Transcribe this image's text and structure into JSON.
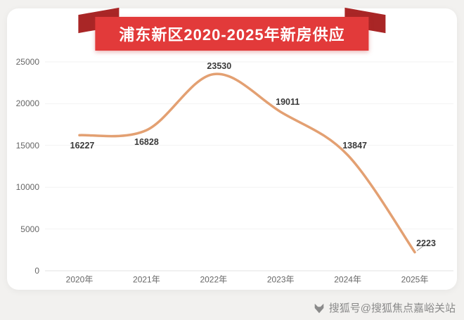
{
  "theme": {
    "page_bg": "#f2f1ef",
    "card_bg": "#ffffff",
    "accent": "#e23a3a",
    "accent_dark": "#a92626",
    "line_color": "#e3a072",
    "grid_color": "#f2f2f2",
    "baseline_color": "#e3e3e3",
    "axis_text": "#666666",
    "label_text": "#3a3a3a",
    "watermark_color": "#8a8a8a"
  },
  "watermark": {
    "icon": "sohu-fox-logo",
    "text": "搜狐号@搜狐焦点嘉峪关站"
  },
  "chart_data": {
    "type": "line",
    "title": "浦东新区2020-2025年新房供应",
    "categories": [
      "2020年",
      "2021年",
      "2022年",
      "2023年",
      "2024年",
      "2025年"
    ],
    "values": [
      16227,
      16828,
      23530,
      19011,
      13847,
      2223
    ],
    "xlabel": "",
    "ylabel": "",
    "ylim": [
      0,
      25000
    ],
    "yticks": [
      0,
      5000,
      10000,
      15000,
      20000,
      25000
    ],
    "grid": "horizontal-faint",
    "legend": "none",
    "smooth": true
  }
}
